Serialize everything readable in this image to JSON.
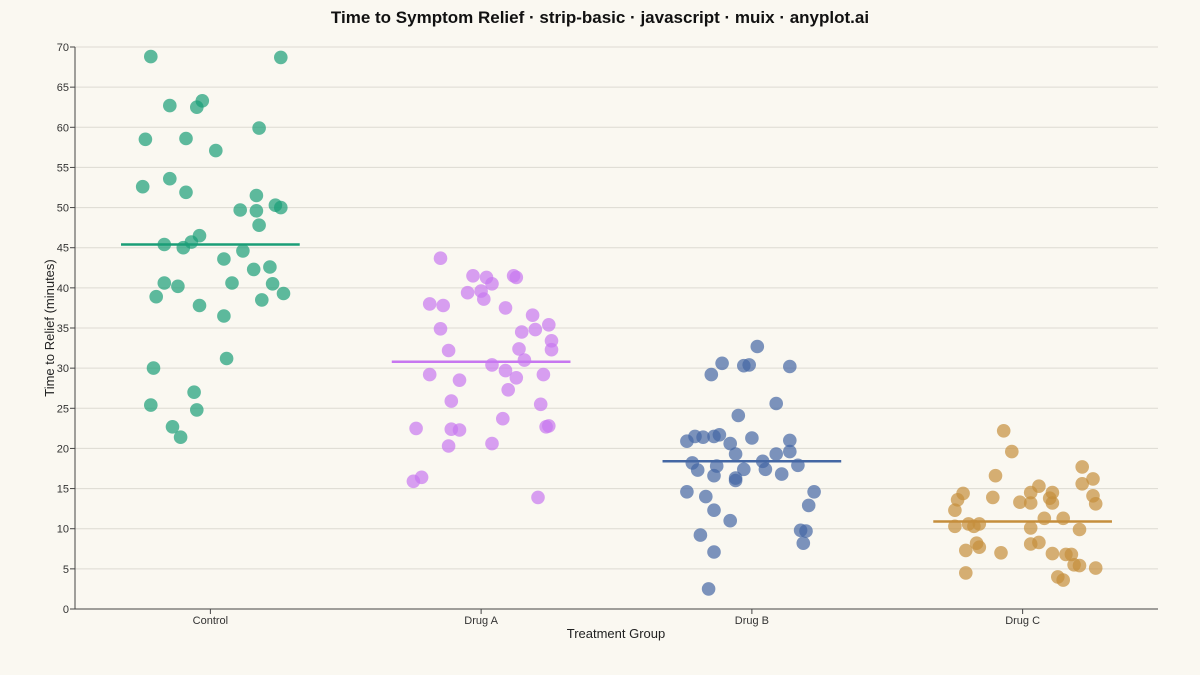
{
  "chart_data": {
    "type": "scatter",
    "subtype": "strip",
    "title": "Time to Symptom Relief · strip-basic · javascript · muix · anyplot.ai",
    "xlabel": "Treatment Group",
    "ylabel": "Time to Relief (minutes)",
    "ylim": [
      0,
      70
    ],
    "yticks": [
      0,
      5,
      10,
      15,
      20,
      25,
      30,
      35,
      40,
      45,
      50,
      55,
      60,
      65,
      70
    ],
    "categories": [
      "Control",
      "Drug A",
      "Drug B",
      "Drug C"
    ],
    "grid": "horizontal",
    "legend": "none",
    "series": [
      {
        "category": "Control",
        "color": "#1A9E77",
        "mean": 45.4,
        "points": [
          [
            -0.22,
            68.8
          ],
          [
            0.26,
            68.7
          ],
          [
            -0.15,
            62.7
          ],
          [
            -0.05,
            62.5
          ],
          [
            -0.03,
            63.3
          ],
          [
            -0.24,
            58.5
          ],
          [
            -0.09,
            58.6
          ],
          [
            0.18,
            59.9
          ],
          [
            0.02,
            57.1
          ],
          [
            -0.15,
            53.6
          ],
          [
            -0.25,
            52.6
          ],
          [
            -0.09,
            51.9
          ],
          [
            0.17,
            51.5
          ],
          [
            0.11,
            49.7
          ],
          [
            0.17,
            49.6
          ],
          [
            0.24,
            50.3
          ],
          [
            0.26,
            50.0
          ],
          [
            0.18,
            47.8
          ],
          [
            -0.17,
            45.4
          ],
          [
            -0.1,
            45.0
          ],
          [
            -0.07,
            45.7
          ],
          [
            -0.04,
            46.5
          ],
          [
            0.12,
            44.6
          ],
          [
            0.05,
            43.6
          ],
          [
            0.22,
            42.6
          ],
          [
            0.16,
            42.3
          ],
          [
            -0.17,
            40.6
          ],
          [
            -0.12,
            40.2
          ],
          [
            0.08,
            40.6
          ],
          [
            0.23,
            40.5
          ],
          [
            -0.2,
            38.9
          ],
          [
            0.27,
            39.3
          ],
          [
            0.19,
            38.5
          ],
          [
            -0.04,
            37.8
          ],
          [
            0.05,
            36.5
          ],
          [
            0.06,
            31.2
          ],
          [
            -0.21,
            30.0
          ],
          [
            -0.06,
            27.0
          ],
          [
            -0.22,
            25.4
          ],
          [
            -0.05,
            24.8
          ],
          [
            -0.14,
            22.7
          ],
          [
            -0.11,
            21.4
          ]
        ]
      },
      {
        "category": "Drug A",
        "color": "#C777F0",
        "mean": 30.8,
        "points": [
          [
            -0.15,
            43.7
          ],
          [
            -0.03,
            41.5
          ],
          [
            0.02,
            41.3
          ],
          [
            0.12,
            41.5
          ],
          [
            0.13,
            41.3
          ],
          [
            0.04,
            40.5
          ],
          [
            -0.05,
            39.4
          ],
          [
            0.0,
            39.6
          ],
          [
            0.01,
            38.6
          ],
          [
            -0.19,
            38.0
          ],
          [
            -0.14,
            37.8
          ],
          [
            0.09,
            37.5
          ],
          [
            0.19,
            36.6
          ],
          [
            -0.15,
            34.9
          ],
          [
            0.15,
            34.5
          ],
          [
            0.2,
            34.8
          ],
          [
            0.25,
            35.4
          ],
          [
            0.26,
            33.4
          ],
          [
            0.14,
            32.4
          ],
          [
            0.26,
            32.3
          ],
          [
            -0.12,
            32.2
          ],
          [
            0.16,
            31.0
          ],
          [
            0.04,
            30.4
          ],
          [
            0.09,
            29.7
          ],
          [
            0.23,
            29.2
          ],
          [
            -0.19,
            29.2
          ],
          [
            -0.08,
            28.5
          ],
          [
            0.13,
            28.8
          ],
          [
            0.1,
            27.3
          ],
          [
            -0.11,
            25.9
          ],
          [
            0.22,
            25.5
          ],
          [
            0.08,
            23.7
          ],
          [
            -0.24,
            22.5
          ],
          [
            -0.11,
            22.4
          ],
          [
            -0.08,
            22.3
          ],
          [
            0.24,
            22.7
          ],
          [
            0.25,
            22.8
          ],
          [
            -0.12,
            20.3
          ],
          [
            0.04,
            20.6
          ],
          [
            -0.22,
            16.4
          ],
          [
            -0.25,
            15.9
          ],
          [
            0.21,
            13.9
          ]
        ]
      },
      {
        "category": "Drug B",
        "color": "#4467A4",
        "mean": 18.4,
        "points": [
          [
            0.02,
            32.7
          ],
          [
            -0.11,
            30.6
          ],
          [
            -0.03,
            30.3
          ],
          [
            -0.01,
            30.4
          ],
          [
            0.14,
            30.2
          ],
          [
            -0.15,
            29.2
          ],
          [
            0.09,
            25.6
          ],
          [
            -0.05,
            24.1
          ],
          [
            -0.24,
            20.9
          ],
          [
            -0.21,
            21.5
          ],
          [
            -0.18,
            21.4
          ],
          [
            -0.14,
            21.5
          ],
          [
            -0.12,
            21.7
          ],
          [
            0.0,
            21.3
          ],
          [
            -0.08,
            20.6
          ],
          [
            0.14,
            21.0
          ],
          [
            -0.06,
            19.3
          ],
          [
            0.09,
            19.3
          ],
          [
            0.14,
            19.6
          ],
          [
            -0.22,
            18.2
          ],
          [
            0.04,
            18.4
          ],
          [
            -0.13,
            17.8
          ],
          [
            -0.2,
            17.3
          ],
          [
            -0.03,
            17.4
          ],
          [
            0.05,
            17.4
          ],
          [
            0.11,
            16.8
          ],
          [
            0.17,
            17.9
          ],
          [
            -0.14,
            16.6
          ],
          [
            -0.06,
            16.0
          ],
          [
            -0.06,
            16.3
          ],
          [
            -0.24,
            14.6
          ],
          [
            0.23,
            14.6
          ],
          [
            -0.17,
            14.0
          ],
          [
            0.21,
            12.9
          ],
          [
            -0.14,
            12.3
          ],
          [
            -0.08,
            11.0
          ],
          [
            0.18,
            9.8
          ],
          [
            0.2,
            9.7
          ],
          [
            -0.19,
            9.2
          ],
          [
            0.19,
            8.2
          ],
          [
            -0.14,
            7.1
          ],
          [
            -0.16,
            2.5
          ]
        ]
      },
      {
        "category": "Drug C",
        "color": "#C58E3C",
        "mean": 10.9,
        "points": [
          [
            -0.07,
            22.2
          ],
          [
            -0.04,
            19.6
          ],
          [
            -0.1,
            16.6
          ],
          [
            0.22,
            17.7
          ],
          [
            0.06,
            15.3
          ],
          [
            0.22,
            15.6
          ],
          [
            0.26,
            16.2
          ],
          [
            -0.22,
            14.4
          ],
          [
            -0.11,
            13.9
          ],
          [
            0.03,
            14.5
          ],
          [
            0.11,
            14.5
          ],
          [
            -0.24,
            13.6
          ],
          [
            0.1,
            13.8
          ],
          [
            -0.01,
            13.3
          ],
          [
            0.03,
            13.2
          ],
          [
            0.11,
            13.2
          ],
          [
            0.26,
            14.1
          ],
          [
            0.27,
            13.1
          ],
          [
            -0.25,
            12.3
          ],
          [
            0.08,
            11.3
          ],
          [
            0.15,
            11.3
          ],
          [
            -0.25,
            10.3
          ],
          [
            -0.2,
            10.6
          ],
          [
            -0.18,
            10.3
          ],
          [
            -0.16,
            10.6
          ],
          [
            0.03,
            10.1
          ],
          [
            0.21,
            9.9
          ],
          [
            -0.17,
            8.2
          ],
          [
            -0.16,
            7.7
          ],
          [
            -0.21,
            7.3
          ],
          [
            0.03,
            8.1
          ],
          [
            0.06,
            8.3
          ],
          [
            -0.08,
            7.0
          ],
          [
            0.11,
            6.9
          ],
          [
            0.16,
            6.8
          ],
          [
            0.18,
            6.8
          ],
          [
            0.19,
            5.5
          ],
          [
            0.21,
            5.4
          ],
          [
            0.27,
            5.1
          ],
          [
            -0.21,
            4.5
          ],
          [
            0.13,
            4.0
          ],
          [
            0.15,
            3.6
          ]
        ]
      }
    ]
  }
}
